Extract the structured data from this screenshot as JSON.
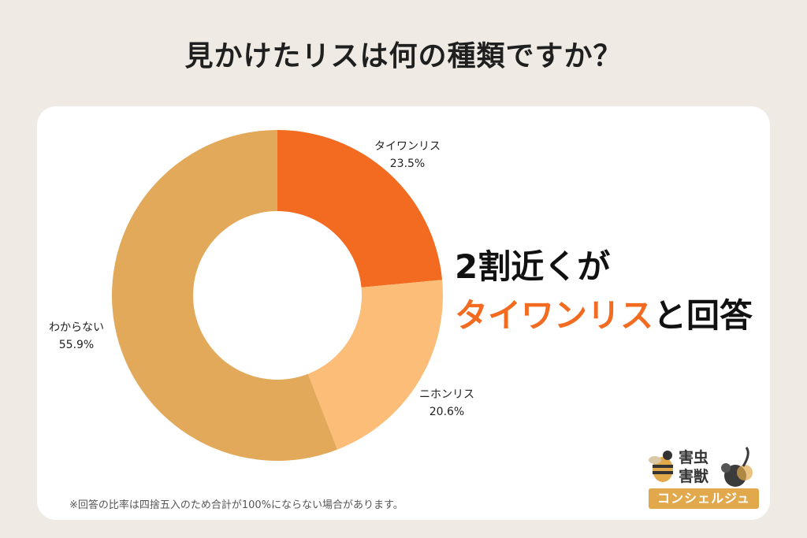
{
  "title": "見かけたリスは何の種類ですか？",
  "chart_data": {
    "type": "pie",
    "variant": "donut",
    "slices": [
      {
        "label": "タイワンリス",
        "value": 23.5,
        "value_text": "23.5%",
        "color": "#f26b21"
      },
      {
        "label": "ニホンリス",
        "value": 20.6,
        "value_text": "20.6%",
        "color": "#fbbd78"
      },
      {
        "label": "わからない",
        "value": 55.9,
        "value_text": "55.9%",
        "color": "#e2a95a"
      }
    ]
  },
  "callout": {
    "line1": "2割近くが",
    "highlight": "タイワンリス",
    "line2_rest": "と回答",
    "highlight_color": "#f26b21"
  },
  "footnote": "※回答の比率は四捨五入のため合計が100%にならない場合があります。",
  "logo": {
    "line1": "害虫",
    "line2": "害獣",
    "banner": "コンシェルジュ",
    "icons": [
      "bee-icon",
      "rat-icon"
    ]
  }
}
